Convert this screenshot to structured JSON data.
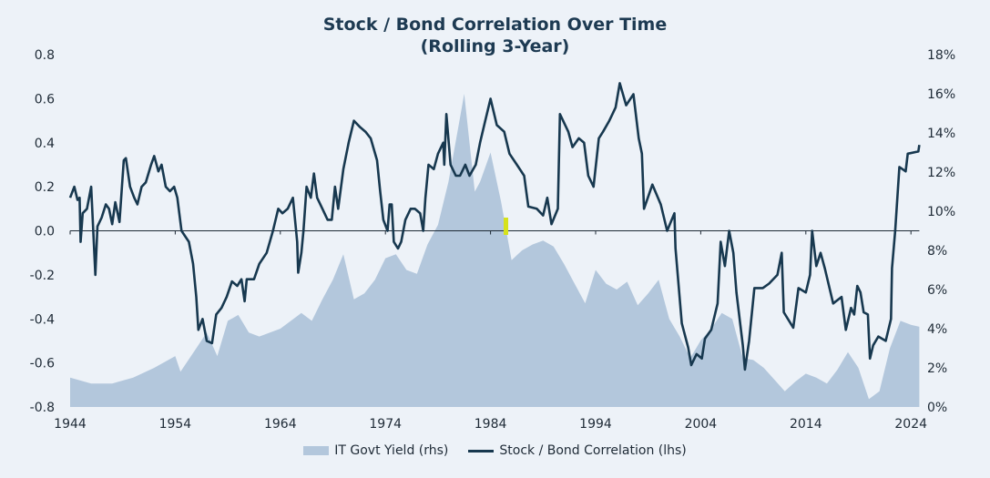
{
  "chart_data": {
    "type": "line",
    "title": "Stock / Bond Correlation Over Time",
    "subtitle": "(Rolling 3-Year)",
    "xlabel": "",
    "ylabel": "",
    "x_ticks": [
      "1944",
      "1954",
      "1964",
      "1974",
      "1984",
      "1994",
      "2004",
      "2014",
      "2024"
    ],
    "y_left_ticks": [
      "0.8",
      "0.6",
      "0.4",
      "0.2",
      "0.0",
      "-0.2",
      "-0.4",
      "-0.6",
      "-0.8"
    ],
    "y_right_ticks": [
      "18%",
      "16%",
      "14%",
      "12%",
      "10%",
      "8%",
      "6%",
      "4%",
      "2%",
      "0%"
    ],
    "ylim_left": [
      -0.8,
      0.8
    ],
    "ylim_right": [
      0,
      18
    ],
    "xlim": [
      1944,
      2024.8
    ],
    "grid": false,
    "legend_position": "bottom",
    "colors": {
      "background": "#edf2f8",
      "line": "#17384f",
      "area": "#b3c7dc",
      "zero_line": "#1e2a36",
      "title": "#1d3a52"
    },
    "series": [
      {
        "name": "IT Govt Yield (rhs)",
        "type": "area",
        "axis": "right",
        "x": [
          1944,
          1946,
          1948,
          1950,
          1952,
          1954,
          1954.5,
          1956,
          1957,
          1958,
          1959,
          1960,
          1961,
          1962,
          1964,
          1966,
          1967,
          1968,
          1969,
          1970,
          1971,
          1972,
          1973,
          1974,
          1975,
          1976,
          1977,
          1978,
          1979,
          1980,
          1981,
          1981.5,
          1982,
          1982.5,
          1983,
          1984,
          1985,
          1986,
          1987,
          1988,
          1989,
          1990,
          1991,
          1992,
          1993,
          1994,
          1995,
          1996,
          1997,
          1998,
          1999,
          2000,
          2001,
          2002,
          2003,
          2004,
          2005,
          2006,
          2007,
          2008,
          2009,
          2010,
          2011,
          2012,
          2013,
          2014,
          2015,
          2016,
          2017,
          2018,
          2019,
          2020,
          2021,
          2022,
          2023,
          2024,
          2024.8
        ],
        "values": [
          1.5,
          1.2,
          1.2,
          1.5,
          2.0,
          2.6,
          1.8,
          3.0,
          3.8,
          2.6,
          4.4,
          4.7,
          3.8,
          3.6,
          4.0,
          4.8,
          4.4,
          5.5,
          6.5,
          7.8,
          5.5,
          5.8,
          6.5,
          7.6,
          7.8,
          7.0,
          6.8,
          8.3,
          9.3,
          11.5,
          14.5,
          16.0,
          13.5,
          11.0,
          11.5,
          13.0,
          10.5,
          7.5,
          8.0,
          8.3,
          8.5,
          8.2,
          7.3,
          6.3,
          5.3,
          7.0,
          6.3,
          6.0,
          6.4,
          5.2,
          5.8,
          6.5,
          4.5,
          3.6,
          2.5,
          3.4,
          4.0,
          4.8,
          4.5,
          2.5,
          2.4,
          2.0,
          1.4,
          0.8,
          1.3,
          1.7,
          1.5,
          1.2,
          1.9,
          2.8,
          2.0,
          0.4,
          0.8,
          3.0,
          4.4,
          4.2,
          4.1
        ]
      },
      {
        "name": "Stock / Bond Correlation (lhs)",
        "type": "line",
        "axis": "left",
        "x": [
          1944.0,
          1944.4,
          1944.7,
          1944.9,
          1945.0,
          1945.2,
          1945.6,
          1945.8,
          1946.0,
          1946.4,
          1946.6,
          1947.0,
          1947.4,
          1947.7,
          1948.0,
          1948.3,
          1948.7,
          1949.1,
          1949.3,
          1949.7,
          1950.1,
          1950.4,
          1950.8,
          1951.2,
          1951.7,
          1952.0,
          1952.4,
          1952.7,
          1953.1,
          1953.5,
          1953.9,
          1954.2,
          1954.6,
          1955.3,
          1955.7,
          1956.0,
          1956.2,
          1956.6,
          1957.0,
          1957.5,
          1957.9,
          1958.4,
          1958.9,
          1959.4,
          1959.9,
          1960.3,
          1960.6,
          1960.8,
          1961.5,
          1962.0,
          1962.7,
          1963.3,
          1963.8,
          1964.2,
          1964.7,
          1965.2,
          1965.6,
          1965.7,
          1966.0,
          1966.2,
          1966.5,
          1966.9,
          1967.2,
          1967.5,
          1968.0,
          1968.5,
          1968.9,
          1969.2,
          1969.5,
          1970.0,
          1970.5,
          1971.0,
          1971.6,
          1972.1,
          1972.6,
          1973.2,
          1973.5,
          1973.8,
          1974.2,
          1974.4,
          1974.6,
          1974.8,
          1975.2,
          1975.5,
          1975.9,
          1976.4,
          1976.8,
          1977.3,
          1977.6,
          1977.8,
          1978.1,
          1978.6,
          1979.0,
          1979.5,
          1979.6,
          1979.8,
          1980.2,
          1980.7,
          1981.1,
          1981.6,
          1982.0,
          1982.6,
          1983.0,
          1983.5,
          1984.0,
          1984.6,
          1985.3,
          1985.8,
          1986.5,
          1987.2,
          1987.6,
          1988.4,
          1989.0,
          1989.4,
          1989.8,
          1990.4,
          1990.6,
          1991.4,
          1991.8,
          1992.4,
          1992.9,
          1993.3,
          1993.8,
          1994.3,
          1994.7,
          1995.3,
          1995.9,
          1996.3,
          1996.9,
          1997.6,
          1998.1,
          1998.4,
          1998.6,
          1999.4,
          2000.2,
          2000.8,
          2001.5,
          2001.6,
          2002.2,
          2002.8,
          2003.1,
          2003.6,
          2004.1,
          2004.4,
          2005.0,
          2005.6,
          2005.9,
          2006.3,
          2006.7,
          2007.1,
          2007.4,
          2008.0,
          2008.2,
          2008.6,
          2009.1,
          2009.9,
          2010.5,
          2011.3,
          2011.7,
          2011.9,
          2012.8,
          2013.3,
          2014.0,
          2014.4,
          2014.6,
          2015.0,
          2015.4,
          2015.8,
          2016.6,
          2017.4,
          2017.8,
          2018.3,
          2018.6,
          2018.9,
          2019.2,
          2019.5,
          2019.9,
          2020.1,
          2020.4,
          2020.9,
          2021.6,
          2022.1,
          2022.2,
          2022.5,
          2022.9,
          2023.5,
          2023.7,
          2024.7,
          2024.8
        ],
        "values": [
          0.15,
          0.2,
          0.14,
          0.15,
          -0.05,
          0.08,
          0.1,
          0.15,
          0.2,
          -0.2,
          0.02,
          0.06,
          0.12,
          0.1,
          0.03,
          0.13,
          0.04,
          0.32,
          0.33,
          0.2,
          0.15,
          0.12,
          0.2,
          0.22,
          0.3,
          0.34,
          0.27,
          0.3,
          0.2,
          0.18,
          0.2,
          0.15,
          0.0,
          -0.05,
          -0.15,
          -0.3,
          -0.45,
          -0.4,
          -0.5,
          -0.51,
          -0.38,
          -0.35,
          -0.3,
          -0.23,
          -0.25,
          -0.22,
          -0.32,
          -0.22,
          -0.22,
          -0.15,
          -0.1,
          0.0,
          0.1,
          0.08,
          0.1,
          0.15,
          -0.05,
          -0.19,
          -0.1,
          0.0,
          0.2,
          0.15,
          0.26,
          0.15,
          0.1,
          0.05,
          0.05,
          0.2,
          0.1,
          0.28,
          0.4,
          0.5,
          0.47,
          0.45,
          0.42,
          0.32,
          0.18,
          0.05,
          0.0,
          0.12,
          0.12,
          -0.05,
          -0.08,
          -0.05,
          0.05,
          0.1,
          0.1,
          0.08,
          0.0,
          0.15,
          0.3,
          0.28,
          0.35,
          0.4,
          0.3,
          0.53,
          0.3,
          0.25,
          0.25,
          0.3,
          0.25,
          0.3,
          0.4,
          0.5,
          0.6,
          0.48,
          0.45,
          0.35,
          0.3,
          0.25,
          0.11,
          0.1,
          0.07,
          0.15,
          0.03,
          0.1,
          0.53,
          0.45,
          0.38,
          0.42,
          0.4,
          0.25,
          0.2,
          0.42,
          0.45,
          0.5,
          0.56,
          0.67,
          0.57,
          0.62,
          0.42,
          0.35,
          0.1,
          0.21,
          0.12,
          0.0,
          0.08,
          -0.08,
          -0.42,
          -0.53,
          -0.61,
          -0.56,
          -0.58,
          -0.49,
          -0.45,
          -0.33,
          -0.05,
          -0.16,
          0.0,
          -0.1,
          -0.28,
          -0.52,
          -0.63,
          -0.5,
          -0.26,
          -0.26,
          -0.24,
          -0.2,
          -0.1,
          -0.37,
          -0.44,
          -0.26,
          -0.28,
          -0.2,
          0.0,
          -0.16,
          -0.1,
          -0.17,
          -0.33,
          -0.3,
          -0.45,
          -0.35,
          -0.38,
          -0.25,
          -0.28,
          -0.37,
          -0.38,
          -0.58,
          -0.52,
          -0.48,
          -0.5,
          -0.4,
          -0.17,
          0.0,
          0.29,
          0.27,
          0.35,
          0.36,
          0.39
        ]
      }
    ]
  },
  "legend": {
    "area_label": "IT Govt Yield (rhs)",
    "line_label": "Stock / Bond Correlation (lhs)"
  }
}
